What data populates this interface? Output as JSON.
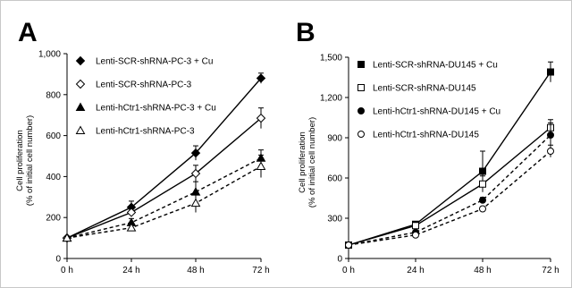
{
  "chart_data": [
    {
      "type": "line",
      "panel_label": "A",
      "title": "",
      "xlabel": "",
      "ylabel": "Cell proliferation",
      "ylabel_sub": "(% of initial cell number)",
      "categories": [
        "0 h",
        "24 h",
        "48 h",
        "72 h"
      ],
      "yticks": [
        "0",
        "200",
        "400",
        "600",
        "800",
        "1,000"
      ],
      "ylim": [
        0,
        1000
      ],
      "grid": false,
      "legend_position": "top-left",
      "series": [
        {
          "name": "Lenti-SCR-shRNA-PC-3 + Cu",
          "values": [
            100,
            250,
            515,
            880
          ],
          "errors": [
            0,
            30,
            35,
            25
          ],
          "marker": "diamond",
          "fill": "filled",
          "dash": "solid"
        },
        {
          "name": "Lenti-SCR-shRNA-PC-3",
          "values": [
            100,
            225,
            415,
            685
          ],
          "errors": [
            0,
            20,
            40,
            50
          ],
          "marker": "diamond",
          "fill": "open",
          "dash": "solid"
        },
        {
          "name": "Lenti-hCtr1-shRNA-PC-3 + Cu",
          "values": [
            100,
            175,
            325,
            490
          ],
          "errors": [
            0,
            20,
            50,
            40
          ],
          "marker": "triangle",
          "fill": "filled",
          "dash": "dashed"
        },
        {
          "name": "Lenti-hCtr1-shRNA-PC-3",
          "values": [
            100,
            150,
            270,
            450
          ],
          "errors": [
            0,
            15,
            45,
            55
          ],
          "marker": "triangle",
          "fill": "open",
          "dash": "dashed"
        }
      ]
    },
    {
      "type": "line",
      "panel_label": "B",
      "title": "",
      "xlabel": "",
      "ylabel": "Cell proliferation",
      "ylabel_sub": "(% of initial cell number)",
      "categories": [
        "0 h",
        "24 h",
        "48 h",
        "72 h"
      ],
      "yticks": [
        "0",
        "300",
        "600",
        "900",
        "1,200",
        "1,500"
      ],
      "ylim": [
        0,
        1500
      ],
      "grid": false,
      "legend_position": "top-left",
      "series": [
        {
          "name": "Lenti-SCR-shRNA-DU145 + Cu",
          "values": [
            100,
            255,
            650,
            1390
          ],
          "errors": [
            0,
            15,
            150,
            75
          ],
          "marker": "square",
          "fill": "filled",
          "dash": "solid"
        },
        {
          "name": "Lenti-SCR-shRNA-DU145",
          "values": [
            100,
            245,
            555,
            975
          ],
          "errors": [
            0,
            15,
            60,
            60
          ],
          "marker": "square",
          "fill": "open",
          "dash": "solid"
        },
        {
          "name": "Lenti-hCtr1-shRNA-DU145 + Cu",
          "values": [
            100,
            195,
            435,
            920
          ],
          "errors": [
            0,
            15,
            20,
            90
          ],
          "marker": "circle",
          "fill": "filled",
          "dash": "dashed"
        },
        {
          "name": "Lenti-hCtr1-shRNA-DU145",
          "values": [
            100,
            175,
            370,
            800
          ],
          "errors": [
            0,
            15,
            15,
            45
          ],
          "marker": "circle",
          "fill": "open",
          "dash": "dashed"
        }
      ]
    }
  ]
}
